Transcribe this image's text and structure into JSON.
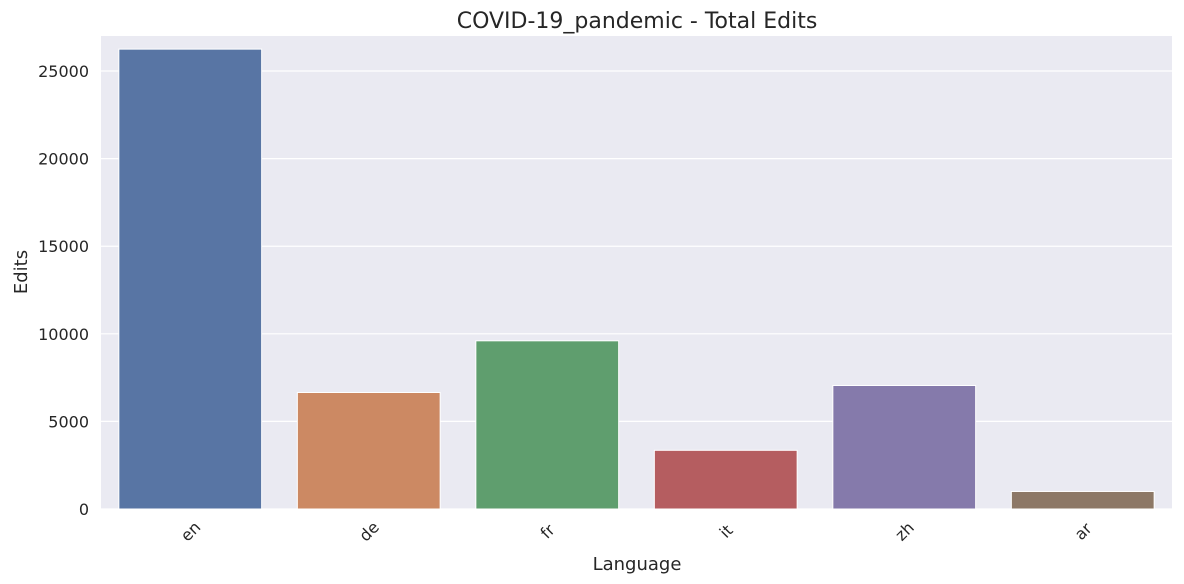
{
  "chart_data": {
    "type": "bar",
    "title": "COVID-19_pandemic - Total Edits",
    "xlabel": "Language",
    "ylabel": "Edits",
    "categories": [
      "en",
      "de",
      "fr",
      "it",
      "zh",
      "ar"
    ],
    "values": [
      26250,
      6650,
      9600,
      3350,
      7050,
      1000
    ],
    "colors": [
      "#5875a4",
      "#cc8963",
      "#5f9e6e",
      "#b55d60",
      "#857aab",
      "#8d7866"
    ],
    "ylim": [
      0,
      27000
    ],
    "yticks": [
      0,
      5000,
      10000,
      15000,
      20000,
      25000
    ],
    "grid": true,
    "background": "#eaeaf2",
    "legend": "none"
  }
}
